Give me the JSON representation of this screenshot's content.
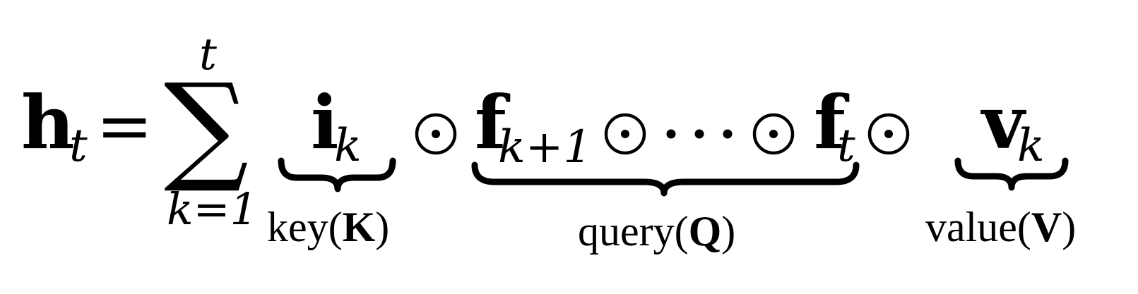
{
  "equation": {
    "lhs": {
      "symbol": "h",
      "subscript": "t",
      "equals": "="
    },
    "sum": {
      "operator": "∑",
      "upper": "t",
      "lower": "k=1"
    },
    "key_term": {
      "symbol": "i",
      "subscript": "k",
      "label_prefix": "key(",
      "label_bold": "K",
      "label_suffix": ")"
    },
    "odot": "⊙",
    "query_term": {
      "first_symbol": "f",
      "first_subscript": "k+1",
      "ellipsis": "⋯",
      "last_symbol": "f",
      "last_subscript": "t",
      "label_prefix": "query(",
      "label_bold": "Q",
      "label_suffix": ")"
    },
    "value_term": {
      "symbol": "v",
      "subscript": "k",
      "label_prefix": "value(",
      "label_bold": "V",
      "label_suffix": ")"
    }
  }
}
